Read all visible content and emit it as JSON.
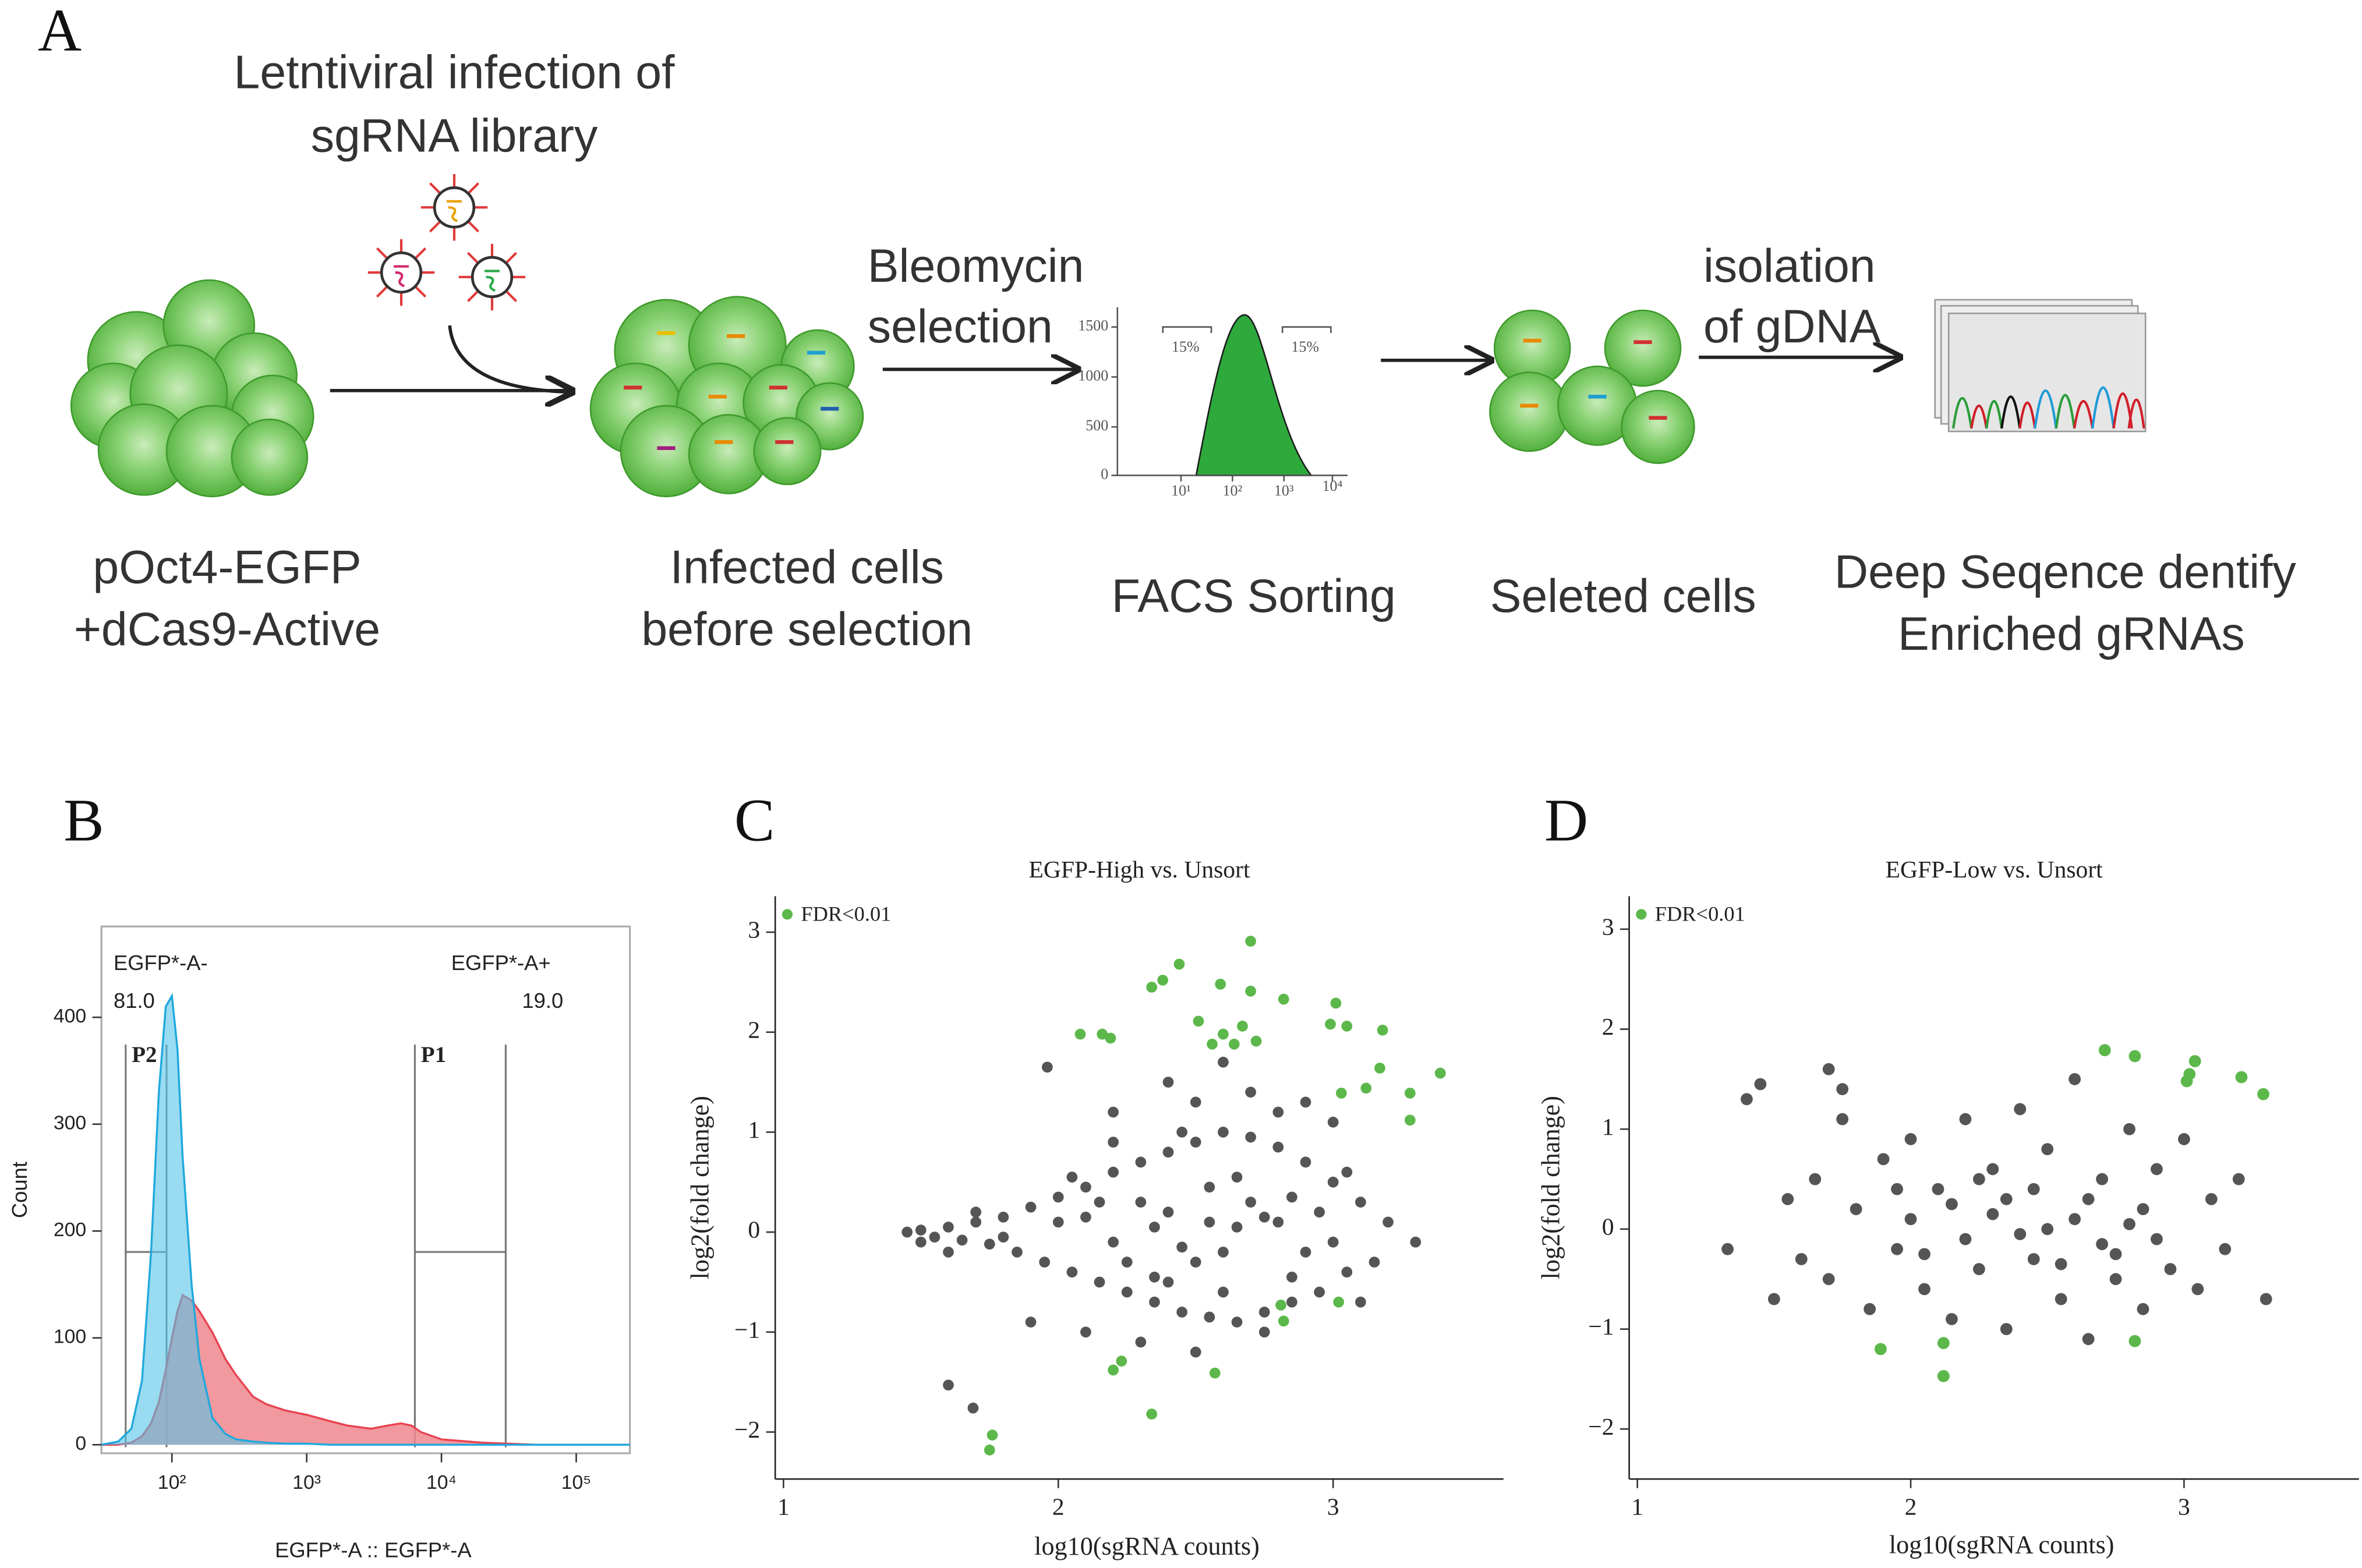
{
  "panel_a": {
    "label": "A",
    "infection": [
      "Letntiviral infection of",
      "sgRNA library"
    ],
    "step1": [
      "Bleomycin",
      "selection"
    ],
    "step2": [
      "isolation",
      "of gDNA"
    ],
    "stages": [
      [
        "pOct4-EGFP",
        "+dCas9-Active"
      ],
      [
        "Infected cells",
        "before selection"
      ],
      [
        "FACS Sorting"
      ],
      [
        "Seleted cells"
      ],
      [
        "Deep Seqence dentify",
        "Enriched gRNAs"
      ]
    ],
    "facs_inset": {
      "yticks": [
        0,
        500,
        1000,
        1500
      ],
      "xticks": [
        "10¹",
        "10²",
        "10³",
        "10⁴"
      ],
      "gates": [
        "15%",
        "15%"
      ]
    }
  },
  "chart_data": [
    {
      "type": "area",
      "label": "B",
      "xlabel": "EGFP*-A :: EGFP*-A",
      "ylabel": "Count",
      "xscale": "log",
      "frame": true,
      "xlim": [
        30,
        250000
      ],
      "ylim": [
        -8,
        485
      ],
      "xticks": [
        {
          "value": 100,
          "label": "10²"
        },
        {
          "value": 1000,
          "label": "10³"
        },
        {
          "value": 10000,
          "label": "10⁴"
        },
        {
          "value": 100000,
          "label": "10⁵"
        }
      ],
      "yticks": [
        0,
        100,
        200,
        300,
        400
      ],
      "x": [
        30,
        40,
        50,
        60,
        70,
        80,
        90,
        100,
        110,
        120,
        140,
        160,
        200,
        250,
        300,
        400,
        500,
        700,
        1000,
        1500,
        2000,
        3000,
        4000,
        5000,
        6000,
        7000,
        10000,
        20000,
        50000,
        100000,
        250000
      ],
      "series": [
        {
          "color": "#f0868e",
          "stroke": "#e8424f",
          "values": [
            0,
            0,
            2,
            8,
            20,
            40,
            70,
            100,
            125,
            140,
            135,
            125,
            105,
            80,
            65,
            45,
            38,
            32,
            28,
            22,
            18,
            15,
            18,
            20,
            18,
            12,
            5,
            2,
            0,
            0,
            0
          ]
        },
        {
          "color": "#55c3e6",
          "stroke": "#1fa8dd",
          "values": [
            0,
            3,
            15,
            60,
            180,
            330,
            410,
            420,
            370,
            270,
            150,
            80,
            25,
            10,
            5,
            3,
            2,
            1,
            1,
            0,
            0,
            0,
            0,
            0,
            0,
            0,
            0,
            0,
            0,
            0,
            0
          ]
        }
      ],
      "gates": [
        {
          "name": "EGFP*-A-",
          "value": 81,
          "value_label": "81.0",
          "label": "P2"
        },
        {
          "name": "EGFP*-A+",
          "value": 19,
          "value_label": "19.0",
          "label": "P1"
        }
      ]
    },
    {
      "type": "scatter",
      "label": "C",
      "title": "EGFP-High vs. Unsort",
      "xlabel": "log10(sgRNA counts)",
      "ylabel": "log2(fold change)",
      "legend": "upper left",
      "xlim": [
        0.97,
        3.62
      ],
      "ylim": [
        -2.47,
        3.36
      ],
      "xticks": [
        1,
        2,
        3
      ],
      "yticks": [
        {
          "value": -2,
          "label": "−2"
        },
        {
          "value": -1,
          "label": "−1"
        },
        0,
        1,
        2,
        3
      ],
      "series": [
        {
          "color": "#555555",
          "x": [
            1.45,
            1.5,
            1.55,
            1.6,
            1.65,
            1.7,
            1.75,
            1.8,
            1.85,
            1.9,
            1.95,
            2.0,
            2.05,
            2.1,
            2.15,
            2.2,
            2.25,
            2.3,
            2.35,
            2.4,
            2.45,
            2.5,
            2.55,
            2.6,
            2.65,
            2.7,
            2.75,
            2.8,
            2.85,
            2.9,
            2.95,
            3.0,
            3.05,
            3.1,
            3.2,
            3.3,
            2.2,
            2.4,
            2.6,
            2.5,
            2.7,
            2.3,
            2.5,
            2.1,
            1.9,
            1.96,
            1.6,
            1.69,
            2.8,
            2.9,
            3.0,
            2.0,
            2.2,
            2.4,
            2.6,
            2.8,
            3.0,
            2.3,
            2.5,
            2.7,
            2.9,
            1.8,
            2.1,
            2.45,
            2.75,
            2.2,
            2.6,
            3.1,
            2.35,
            2.55,
            2.65,
            2.45,
            2.15,
            2.25,
            2.85,
            2.95,
            3.15,
            1.7,
            1.6,
            1.5,
            2.05,
            2.35,
            2.65,
            2.85,
            3.05,
            2.55,
            2.4,
            2.75
          ],
          "values": [
            0,
            0.02,
            -0.05,
            0.05,
            -0.08,
            0.1,
            -0.12,
            0.15,
            -0.2,
            0.25,
            -0.3,
            0.35,
            -0.4,
            0.45,
            -0.5,
            0.6,
            -0.6,
            0.7,
            -0.7,
            0.8,
            -0.8,
            0.9,
            -0.85,
            1.0,
            -0.9,
            0.95,
            -0.8,
            0.85,
            -0.7,
            0.7,
            -0.6,
            0.5,
            -0.4,
            0.3,
            0.1,
            -0.1,
            1.2,
            1.5,
            1.7,
            1.3,
            1.4,
            -1.1,
            -1.2,
            -1.0,
            -0.9,
            1.65,
            -1.53,
            -1.76,
            1.2,
            1.3,
            1.1,
            0.1,
            -0.1,
            0.2,
            -0.2,
            0.1,
            -0.1,
            0.3,
            -0.3,
            0.3,
            -0.2,
            -0.05,
            0.15,
            1.0,
            -1.0,
            0.9,
            -0.6,
            -0.7,
            0.05,
            0.1,
            0.05,
            -0.15,
            0.3,
            -0.3,
            0.35,
            0.2,
            -0.3,
            0.2,
            -0.2,
            -0.1,
            0.55,
            -0.45,
            0.55,
            -0.45,
            0.6,
            0.45,
            -0.5,
            0.15
          ]
        },
        {
          "name": "FDR<0.01",
          "color": "#5cb84a",
          "x": [
            2.44,
            2.38,
            2.34,
            2.7,
            2.59,
            2.7,
            2.82,
            3.01,
            2.99,
            3.05,
            3.18,
            2.08,
            2.16,
            2.19,
            2.51,
            2.56,
            2.6,
            2.67,
            2.64,
            2.72,
            3.39,
            3.17,
            3.12,
            3.03,
            3.28,
            3.28,
            2.81,
            2.82,
            3.02,
            2.23,
            2.2,
            2.57,
            2.34,
            1.76,
            1.75
          ],
          "values": [
            2.68,
            2.52,
            2.45,
            2.91,
            2.48,
            2.41,
            2.33,
            2.29,
            2.08,
            2.06,
            2.02,
            1.98,
            1.98,
            1.94,
            2.11,
            1.88,
            1.98,
            2.06,
            1.88,
            1.91,
            1.59,
            1.64,
            1.44,
            1.39,
            1.39,
            1.12,
            -0.73,
            -0.89,
            -0.7,
            -1.29,
            -1.38,
            -1.41,
            -1.82,
            -2.03,
            -2.18
          ]
        }
      ]
    },
    {
      "type": "scatter",
      "label": "D",
      "title": "EGFP-Low vs. Unsort",
      "xlabel": "log10(sgRNA counts)",
      "ylabel": "log2(fold change)",
      "legend": "upper left",
      "xlim": [
        0.97,
        3.64
      ],
      "ylim": [
        -2.5,
        3.33
      ],
      "xticks": [
        1,
        2,
        3
      ],
      "yticks": [
        {
          "value": -2,
          "label": "−2"
        },
        {
          "value": -1,
          "label": "−1"
        },
        0,
        1,
        2,
        3
      ],
      "series": [
        {
          "color": "#555555",
          "x": [
            1.33,
            1.4,
            1.45,
            1.5,
            1.55,
            1.6,
            1.65,
            1.7,
            1.75,
            1.8,
            1.85,
            1.9,
            1.95,
            2.0,
            2.05,
            2.1,
            2.15,
            2.2,
            2.25,
            2.3,
            2.35,
            2.4,
            2.45,
            2.5,
            2.55,
            2.6,
            2.65,
            2.7,
            2.75,
            2.8,
            2.85,
            2.9,
            2.95,
            3.0,
            3.05,
            3.1,
            3.15,
            3.2,
            3.3,
            1.7,
            1.75,
            2.0,
            2.2,
            2.3,
            2.4,
            2.5,
            2.6,
            2.7,
            2.8,
            2.45,
            2.35,
            2.55,
            2.15,
            2.65,
            2.25,
            2.75,
            2.85,
            2.05,
            1.95,
            2.9
          ],
          "values": [
            -0.2,
            1.3,
            1.45,
            -0.7,
            0.3,
            -0.3,
            0.5,
            -0.5,
            1.1,
            0.2,
            -0.8,
            0.7,
            -0.2,
            0.9,
            -0.6,
            0.4,
            -0.9,
            1.1,
            -0.4,
            0.6,
            -1.0,
            1.2,
            -0.3,
            0.8,
            -0.7,
            1.5,
            -1.1,
            0.5,
            -0.5,
            1.0,
            -0.8,
            0.6,
            -0.4,
            0.9,
            -0.6,
            0.3,
            -0.2,
            0.5,
            -0.7,
            1.6,
            1.4,
            0.1,
            -0.1,
            0.15,
            -0.05,
            0.0,
            0.1,
            -0.15,
            0.05,
            0.4,
            0.3,
            -0.35,
            0.25,
            0.3,
            0.5,
            -0.25,
            0.2,
            -0.25,
            0.4,
            -0.1
          ]
        },
        {
          "name": "FDR<0.01",
          "color": "#5cb84a",
          "x": [
            2.71,
            2.82,
            3.04,
            3.02,
            3.01,
            3.21,
            3.29,
            1.89,
            2.12,
            2.12,
            2.82
          ],
          "values": [
            1.79,
            1.73,
            1.68,
            1.55,
            1.48,
            1.52,
            1.35,
            -1.2,
            -1.14,
            -1.47,
            -1.12
          ]
        }
      ]
    }
  ]
}
